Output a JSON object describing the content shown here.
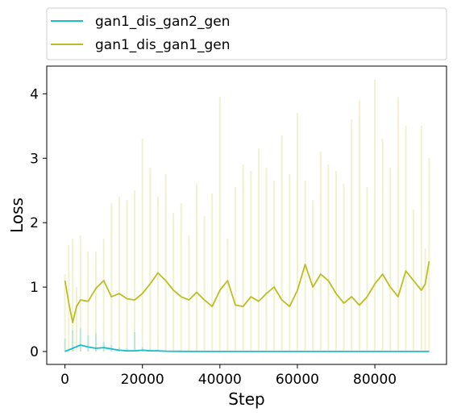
{
  "chart_data": {
    "type": "line",
    "xlabel": "Step",
    "ylabel": "Loss",
    "xlim": [
      -4700,
      98500
    ],
    "ylim": [
      -0.2,
      4.43
    ],
    "xticks": [
      0,
      20000,
      40000,
      60000,
      80000
    ],
    "xtick_labels": [
      "0",
      "20000",
      "40000",
      "60000",
      "80000"
    ],
    "yticks": [
      0,
      1,
      2,
      3,
      4
    ],
    "ytick_labels": [
      "0",
      "1",
      "2",
      "3",
      "4"
    ],
    "grid": false,
    "legend_position": "top, above plot",
    "series": [
      {
        "name": "gan1_dis_gan2_gen",
        "color": "#17becf",
        "x": [
          0,
          2000,
          4000,
          6000,
          8000,
          10000,
          12000,
          14000,
          16000,
          18000,
          20000,
          22000,
          24000,
          26000,
          30000,
          40000,
          60000,
          80000,
          94000
        ],
        "values": [
          0.0,
          0.05,
          0.1,
          0.07,
          0.05,
          0.06,
          0.04,
          0.02,
          0.01,
          0.01,
          0.02,
          0.01,
          0.01,
          0.005,
          0.003,
          0.002,
          0.002,
          0.002,
          0.002
        ],
        "raw_upper": [
          0.2,
          0.33,
          0.36,
          0.25,
          0.28,
          0.15,
          0.1,
          0.06,
          0.05,
          0.3,
          0.07,
          0.04,
          0.03,
          0.02,
          0.01,
          0.01,
          0.01,
          0.01,
          0.01
        ]
      },
      {
        "name": "gan1_dis_gan1_gen",
        "color": "#bcbd22",
        "x": [
          0,
          1000,
          2000,
          3000,
          4000,
          6000,
          8000,
          10000,
          12000,
          14000,
          16000,
          18000,
          20000,
          22000,
          24000,
          26000,
          28000,
          30000,
          32000,
          34000,
          36000,
          38000,
          40000,
          42000,
          44000,
          46000,
          48000,
          50000,
          52000,
          54000,
          56000,
          58000,
          60000,
          62000,
          64000,
          66000,
          68000,
          70000,
          72000,
          74000,
          76000,
          78000,
          80000,
          82000,
          84000,
          86000,
          88000,
          90000,
          92000,
          93000,
          94000
        ],
        "values": [
          1.1,
          0.75,
          0.45,
          0.7,
          0.8,
          0.78,
          0.98,
          1.1,
          0.85,
          0.9,
          0.82,
          0.8,
          0.9,
          1.05,
          1.22,
          1.1,
          0.95,
          0.85,
          0.8,
          0.92,
          0.8,
          0.7,
          0.95,
          1.1,
          0.72,
          0.7,
          0.85,
          0.78,
          0.9,
          1.0,
          0.8,
          0.7,
          0.95,
          1.35,
          1.0,
          1.2,
          1.1,
          0.9,
          0.75,
          0.85,
          0.72,
          0.85,
          1.05,
          1.2,
          1.0,
          0.85,
          1.25,
          1.1,
          0.95,
          1.05,
          1.4
        ],
        "raw_upper": [
          1.2,
          1.65,
          1.75,
          1.0,
          1.8,
          1.55,
          1.55,
          1.75,
          2.3,
          2.4,
          2.35,
          2.5,
          3.3,
          2.85,
          2.4,
          2.75,
          2.15,
          2.3,
          1.8,
          2.6,
          2.1,
          2.45,
          3.95,
          1.75,
          2.55,
          2.9,
          2.8,
          3.15,
          2.85,
          2.65,
          3.35,
          2.75,
          3.7,
          2.65,
          2.35,
          3.1,
          2.9,
          2.8,
          2.6,
          3.6,
          3.9,
          2.55,
          4.22,
          3.3,
          2.85,
          3.95,
          3.5,
          2.2,
          3.5,
          1.6,
          3.0
        ],
        "raw_lower": [
          0.0,
          0.0,
          0.0,
          0.0,
          0.0,
          0.0,
          0.0,
          0.0,
          0.0,
          0.0,
          0.0,
          0.0,
          0.0,
          0.0,
          0.0,
          0.0,
          0.0,
          0.0,
          0.0,
          0.0,
          0.0,
          0.0,
          0.0,
          0.0,
          0.0,
          0.0,
          0.0,
          0.0,
          0.0,
          0.0,
          0.0,
          0.0,
          0.0,
          0.0,
          0.0,
          0.0,
          0.0,
          0.0,
          0.0,
          0.0,
          0.0,
          0.0,
          0.0,
          0.0,
          0.0,
          0.0,
          0.0,
          0.0,
          0.0,
          0.0,
          0.0
        ]
      }
    ]
  }
}
